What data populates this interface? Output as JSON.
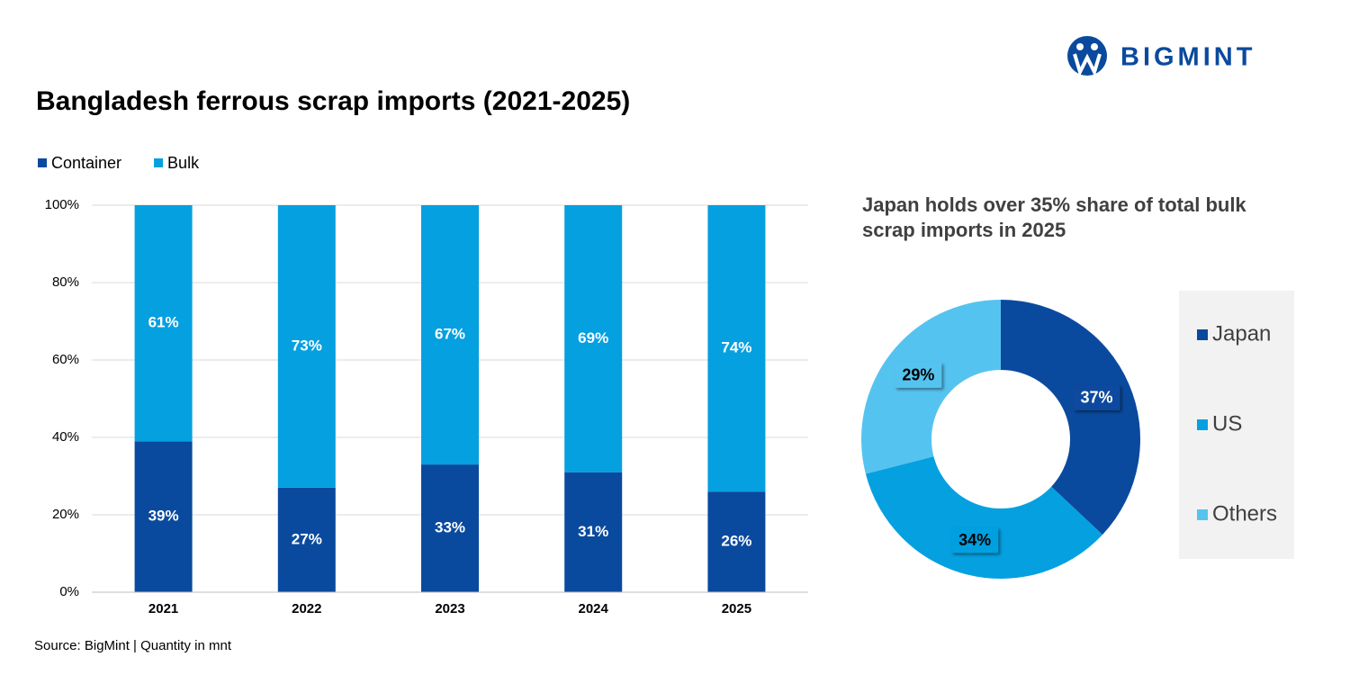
{
  "logo": "BIGMINT",
  "source": "Source: BigMint | Quantity in mnt",
  "chart_data": [
    {
      "type": "bar",
      "stacked": true,
      "title": "Bangladesh ferrous scrap imports (2021-2025)",
      "categories": [
        "2021",
        "2022",
        "2023",
        "2024",
        "2025"
      ],
      "series": [
        {
          "name": "Container",
          "color": "#0a4a9e",
          "values": [
            39,
            27,
            33,
            31,
            26
          ],
          "value_labels": [
            "39%",
            "27%",
            "33%",
            "31%",
            "26%"
          ]
        },
        {
          "name": "Bulk",
          "color": "#05a0e0",
          "values": [
            61,
            73,
            67,
            69,
            74
          ],
          "value_labels": [
            "61%",
            "73%",
            "67%",
            "69%",
            "74%"
          ]
        }
      ],
      "ylim": [
        0,
        100
      ],
      "yticks": [
        {
          "value": 0,
          "label": "0%"
        },
        {
          "value": 20,
          "label": "20%"
        },
        {
          "value": 40,
          "label": "40%"
        },
        {
          "value": 60,
          "label": "60%"
        },
        {
          "value": 80,
          "label": "80%"
        },
        {
          "value": 100,
          "label": "100%"
        }
      ],
      "grid": true,
      "legend": "top-left"
    },
    {
      "type": "donut",
      "title": "Japan holds over 35% share of total bulk scrap imports in 2025",
      "categories": [
        "Japan",
        "US",
        "Others"
      ],
      "values": [
        37,
        34,
        29
      ],
      "value_labels": [
        "37%",
        "34%",
        "29%"
      ],
      "colors": [
        "#0a4a9e",
        "#05a0e0",
        "#55c3f0"
      ],
      "legend": "right"
    }
  ]
}
